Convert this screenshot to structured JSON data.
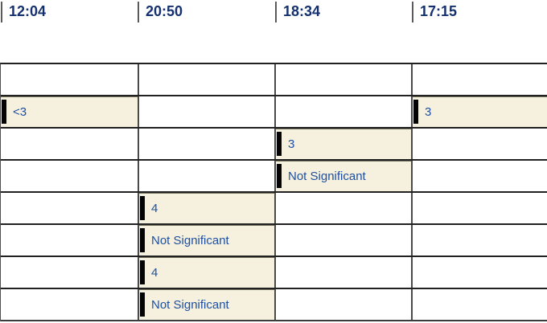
{
  "header": {
    "times": [
      "12:04",
      "20:50",
      "18:34",
      "17:15"
    ]
  },
  "grid": {
    "rows": [
      {
        "cells": [
          {
            "text": ""
          },
          {
            "text": ""
          },
          {
            "text": ""
          },
          {
            "text": ""
          }
        ]
      },
      {
        "cells": [
          {
            "text": "<3",
            "hl": true
          },
          {
            "text": ""
          },
          {
            "text": ""
          },
          {
            "text": "3",
            "hl": true
          }
        ]
      },
      {
        "cells": [
          {
            "text": ""
          },
          {
            "text": ""
          },
          {
            "text": "3",
            "hl": true
          },
          {
            "text": ""
          }
        ]
      },
      {
        "cells": [
          {
            "text": ""
          },
          {
            "text": ""
          },
          {
            "text": "Not Significant",
            "hl": true
          },
          {
            "text": ""
          }
        ]
      },
      {
        "cells": [
          {
            "text": ""
          },
          {
            "text": "4",
            "hl": true
          },
          {
            "text": ""
          },
          {
            "text": ""
          }
        ]
      },
      {
        "cells": [
          {
            "text": ""
          },
          {
            "text": "Not Significant",
            "hl": true
          },
          {
            "text": ""
          },
          {
            "text": ""
          }
        ]
      },
      {
        "cells": [
          {
            "text": ""
          },
          {
            "text": "4",
            "hl": true
          },
          {
            "text": ""
          },
          {
            "text": ""
          }
        ]
      },
      {
        "cells": [
          {
            "text": ""
          },
          {
            "text": "Not Significant",
            "hl": true
          },
          {
            "text": ""
          },
          {
            "text": ""
          }
        ]
      }
    ]
  },
  "colors": {
    "highlight_bg": "#f6f1de",
    "highlight_edge": "#6f6f5a",
    "cell_text_blue": "#1d4fa5",
    "time_text_navy": "#14306e",
    "grid_line": "#212121",
    "divider_line": "#4a4a4a",
    "marker_black": "#040404"
  }
}
